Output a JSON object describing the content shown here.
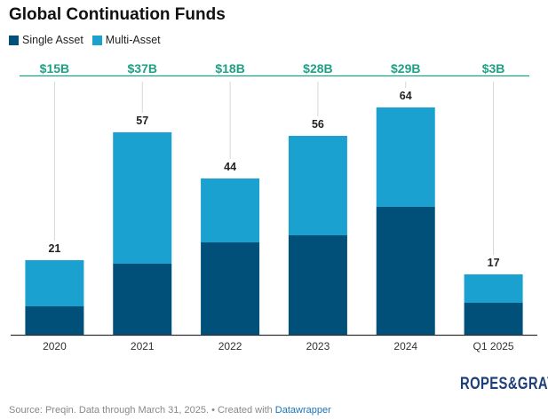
{
  "chart_data": {
    "type": "bar",
    "title": "Global Continuation Funds",
    "categories": [
      "2020",
      "2021",
      "2022",
      "2023",
      "2024",
      "Q1 2025"
    ],
    "series": [
      {
        "name": "Single Asset",
        "values": [
          8,
          20,
          26,
          28,
          36,
          9
        ]
      },
      {
        "name": "Multi-Asset",
        "values": [
          13,
          37,
          18,
          28,
          28,
          8
        ]
      }
    ],
    "totals": [
      "21",
      "57",
      "44",
      "56",
      "64",
      "17"
    ],
    "top_labels": [
      "$15B",
      "$37B",
      "$18B",
      "$28B",
      "$29B",
      "$3B"
    ],
    "ylim": [
      0,
      70
    ],
    "stacked": true,
    "colors": {
      "single": "#00507a",
      "multi": "#1ba1d0",
      "top_line": "#1e9f86",
      "top_label": "#1e9f86"
    },
    "legend_position": "top-left"
  },
  "legend": {
    "single_label": "Single Asset",
    "multi_label": "Multi-Asset"
  },
  "logo_text": "ROPES&GRAY",
  "source": {
    "text": "Source: Preqin. Data through March 31, 2025. • Created with ",
    "link": "Datawrapper"
  }
}
